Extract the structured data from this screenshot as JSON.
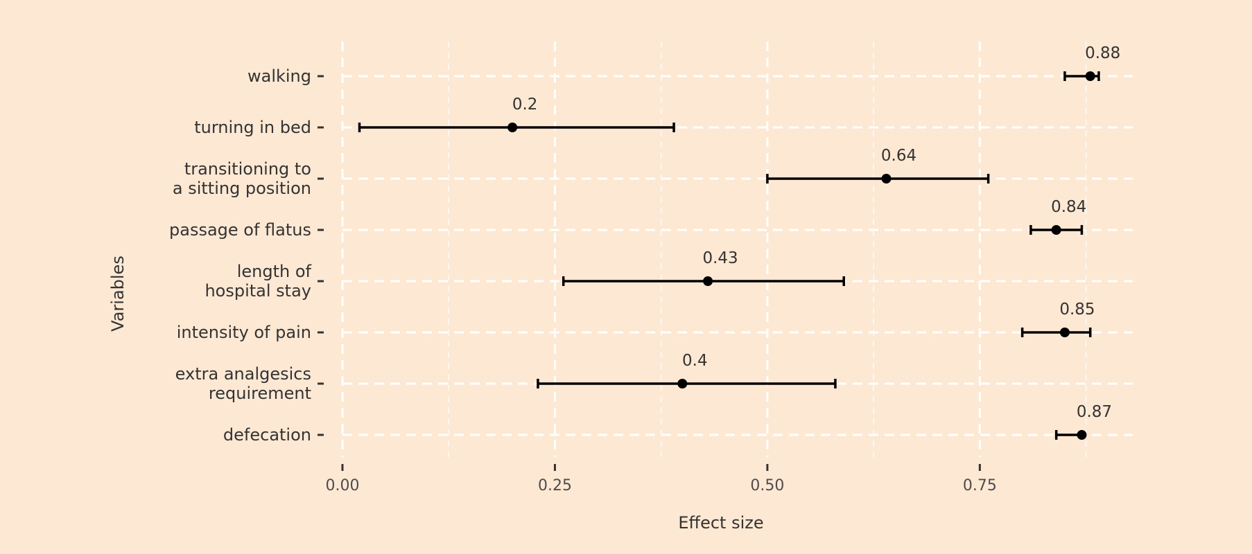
{
  "chart_data": {
    "type": "scatter",
    "subtype": "forest-plot",
    "title": "",
    "xlabel": "Effect size",
    "ylabel": "Variables",
    "xlim": [
      0,
      0.93
    ],
    "x_ticks": [
      0.0,
      0.25,
      0.5,
      0.75
    ],
    "x_tick_labels": [
      "0.00",
      "0.25",
      "0.50",
      "0.75"
    ],
    "grid": true,
    "legend": "none",
    "colors": {
      "background": "#fde9d3",
      "grid": "#ffffff",
      "marks": "#000000"
    },
    "categories": [
      {
        "label": [
          "walking"
        ],
        "value": 0.88,
        "lower": 0.85,
        "upper": 0.89,
        "data_label": "0.88"
      },
      {
        "label": [
          "turning in bed"
        ],
        "value": 0.2,
        "lower": 0.02,
        "upper": 0.39,
        "data_label": "0.2"
      },
      {
        "label": [
          "transitioning to",
          "a sitting position"
        ],
        "value": 0.64,
        "lower": 0.5,
        "upper": 0.76,
        "data_label": "0.64"
      },
      {
        "label": [
          "passage of flatus"
        ],
        "value": 0.84,
        "lower": 0.81,
        "upper": 0.87,
        "data_label": "0.84"
      },
      {
        "label": [
          "length of",
          "hospital stay"
        ],
        "value": 0.43,
        "lower": 0.26,
        "upper": 0.59,
        "data_label": "0.43"
      },
      {
        "label": [
          "intensity of pain"
        ],
        "value": 0.85,
        "lower": 0.8,
        "upper": 0.88,
        "data_label": "0.85"
      },
      {
        "label": [
          "extra analgesics",
          "requirement"
        ],
        "value": 0.4,
        "lower": 0.23,
        "upper": 0.58,
        "data_label": "0.4"
      },
      {
        "label": [
          "defecation"
        ],
        "value": 0.87,
        "lower": 0.84,
        "upper": 0.87,
        "data_label": "0.87"
      }
    ]
  }
}
